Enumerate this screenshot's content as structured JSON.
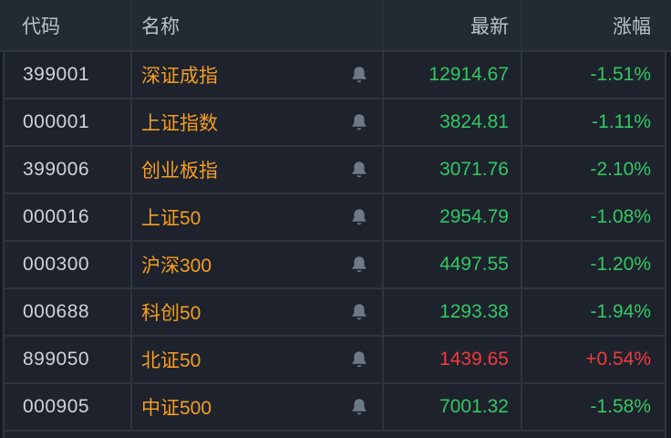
{
  "table": {
    "columns": [
      {
        "key": "code",
        "label": "代码"
      },
      {
        "key": "name",
        "label": "名称"
      },
      {
        "key": "latest",
        "label": "最新"
      },
      {
        "key": "change",
        "label": "涨幅"
      }
    ],
    "rows": [
      {
        "code": "399001",
        "name": "深证成指",
        "latest": "12914.67",
        "change": "-1.51%",
        "trend": "down"
      },
      {
        "code": "000001",
        "name": "上证指数",
        "latest": "3824.81",
        "change": "-1.11%",
        "trend": "down"
      },
      {
        "code": "399006",
        "name": "创业板指",
        "latest": "3071.76",
        "change": "-2.10%",
        "trend": "down"
      },
      {
        "code": "000016",
        "name": "上证50",
        "latest": "2954.79",
        "change": "-1.08%",
        "trend": "down"
      },
      {
        "code": "000300",
        "name": "沪深300",
        "latest": "4497.55",
        "change": "-1.20%",
        "trend": "down"
      },
      {
        "code": "000688",
        "name": "科创50",
        "latest": "1293.38",
        "change": "-1.94%",
        "trend": "down"
      },
      {
        "code": "899050",
        "name": "北证50",
        "latest": "1439.65",
        "change": "+0.54%",
        "trend": "up"
      },
      {
        "code": "000905",
        "name": "中证500",
        "latest": "7001.32",
        "change": "-1.58%",
        "trend": "down"
      }
    ],
    "row_icon": "bell-icon"
  },
  "colors": {
    "up": "#f23b3b",
    "down": "#33c763",
    "name_accent": "#f49d20",
    "header_bg": "#242a34",
    "row_bg": "#1d222c",
    "grid_line": "#2e3540"
  }
}
